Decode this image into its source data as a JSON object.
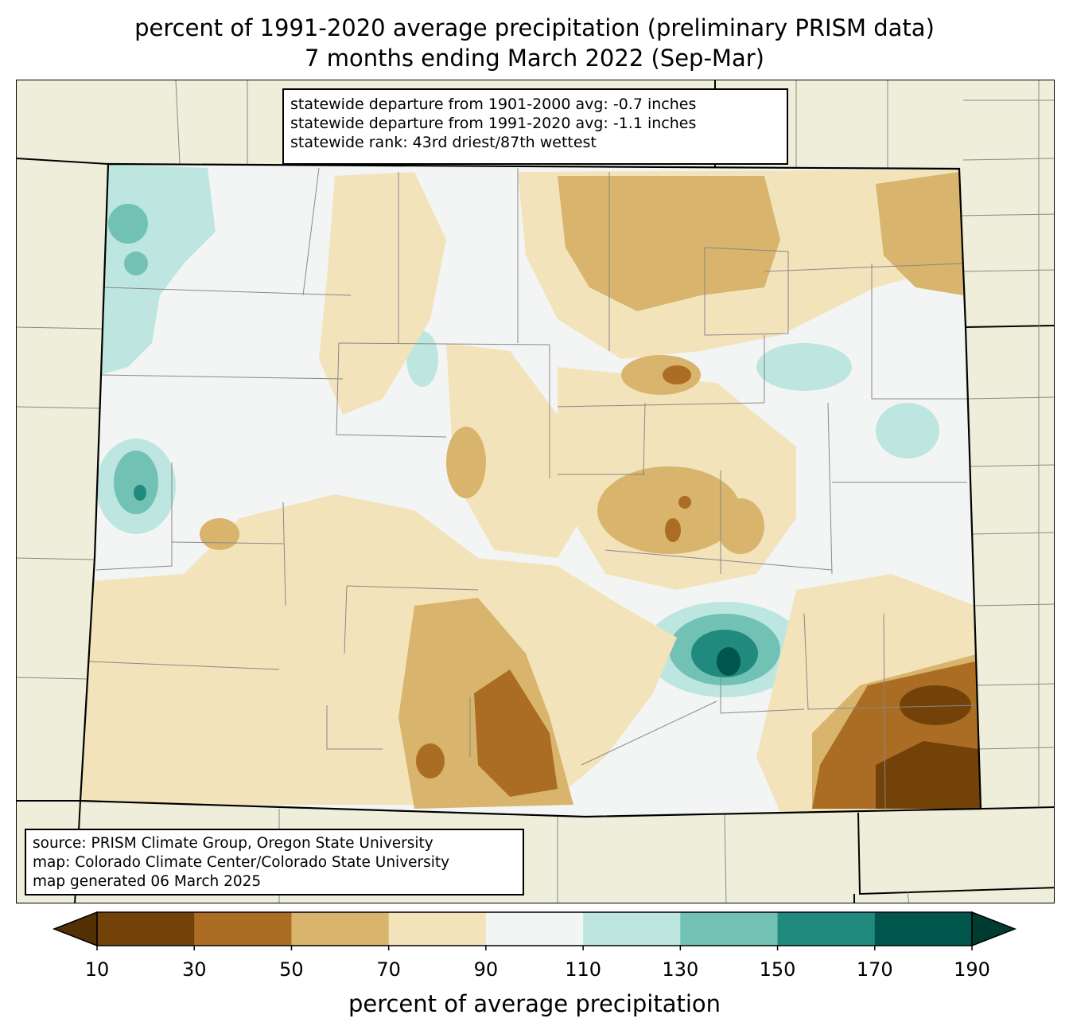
{
  "title": {
    "line1": "percent of 1991-2020 average precipitation (preliminary PRISM data)",
    "line2": "7 months ending March 2022 (Sep-Mar)"
  },
  "stats": {
    "line1": "statewide departure from 1901-2000 avg: -0.7 inches",
    "line2": "statewide departure from 1991-2020 avg: -1.1 inches",
    "line3": "statewide rank: 43rd driest/87th wettest"
  },
  "source": {
    "line1": "source: PRISM Climate Group, Oregon State University",
    "line2": "map: Colorado Climate Center/Colorado State University",
    "line3": "map generated 06 March 2025"
  },
  "colorbar": {
    "label": "percent of average precipitation",
    "ticks": [
      "10",
      "30",
      "50",
      "70",
      "90",
      "110",
      "130",
      "150",
      "170",
      "190"
    ],
    "bins": [
      {
        "range": "<10",
        "color": "#543005"
      },
      {
        "range": "10-30",
        "color": "#724209"
      },
      {
        "range": "30-50",
        "color": "#ab6d24"
      },
      {
        "range": "50-70",
        "color": "#d8b46c"
      },
      {
        "range": "70-90",
        "color": "#f2e3bb"
      },
      {
        "range": "90-110",
        "color": "#f3f5f4"
      },
      {
        "range": "110-130",
        "color": "#bde6e0"
      },
      {
        "range": "130-150",
        "color": "#71c2b5"
      },
      {
        "range": "150-170",
        "color": "#218a7f"
      },
      {
        "range": "170-190",
        "color": "#00564c"
      },
      {
        "range": ">190",
        "color": "#003c30"
      }
    ]
  },
  "colors": {
    "background_land": "#efeedb",
    "county_lines": "#888888",
    "state_lines": "#000000"
  }
}
